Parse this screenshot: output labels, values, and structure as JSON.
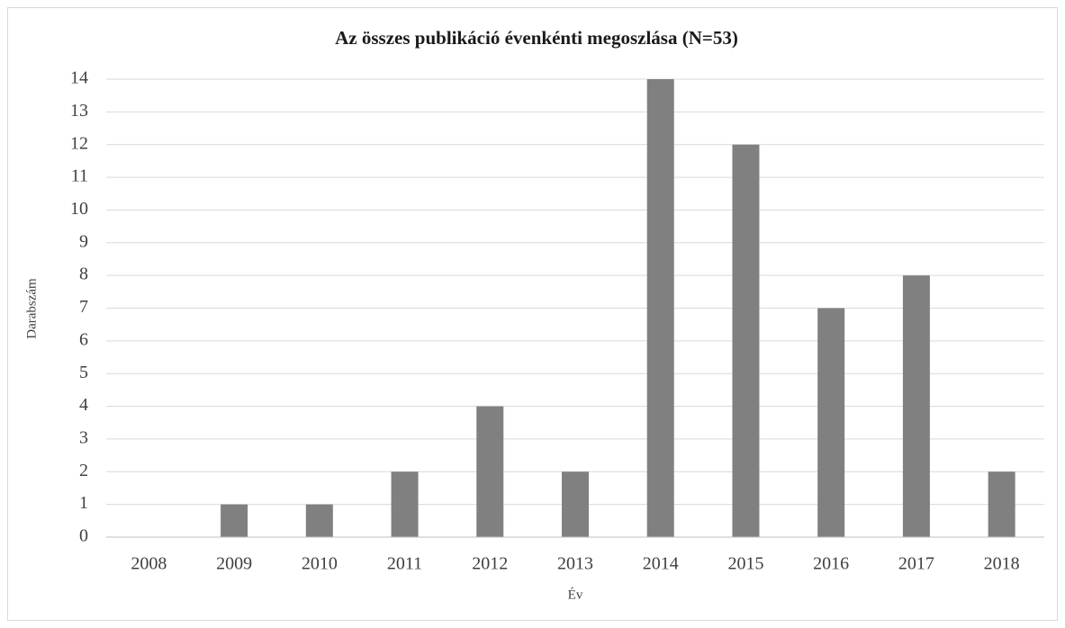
{
  "chart_data": {
    "type": "bar",
    "title": "Az összes publikáció évenkénti megoszlása (N=53)",
    "x_label": "Év",
    "y_label": "Darabszám",
    "categories": [
      "2008",
      "2009",
      "2010",
      "2011",
      "2012",
      "2013",
      "2014",
      "2015",
      "2016",
      "2017",
      "2018"
    ],
    "values": [
      0,
      1,
      1,
      2,
      4,
      2,
      14,
      12,
      7,
      8,
      2
    ],
    "color": "#808080",
    "ylim": [
      0,
      14
    ],
    "yticks": [
      0,
      1,
      2,
      3,
      4,
      5,
      6,
      7,
      8,
      9,
      10,
      11,
      12,
      13,
      14
    ],
    "grid": true
  }
}
